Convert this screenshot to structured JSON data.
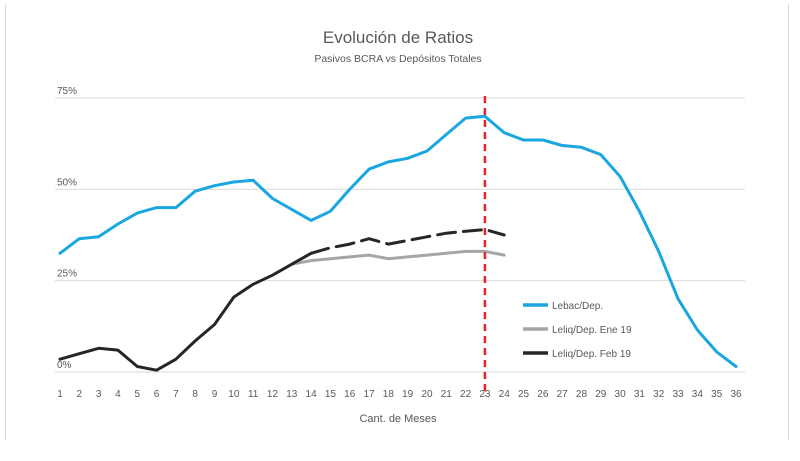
{
  "chart_data": {
    "type": "line",
    "title": "Evolución de Ratios",
    "subtitle": "Pasivos BCRA vs Depósitos Totales",
    "xlabel": "Cant. de Meses",
    "ylabel": "",
    "ylim": [
      0,
      75
    ],
    "yticks": [
      0,
      25,
      50,
      75
    ],
    "ytick_labels": [
      "0%",
      "25%",
      "50%",
      "75%"
    ],
    "categories": [
      "1",
      "2",
      "3",
      "4",
      "5",
      "6",
      "7",
      "8",
      "9",
      "10",
      "11",
      "12",
      "13",
      "14",
      "15",
      "16",
      "17",
      "18",
      "19",
      "20",
      "21",
      "22",
      "23",
      "24",
      "25",
      "26",
      "27",
      "28",
      "29",
      "30",
      "31",
      "32",
      "33",
      "34",
      "35",
      "36"
    ],
    "vertical_marker": {
      "x": 23,
      "color": "#e8242a",
      "style": "dashed"
    },
    "series": [
      {
        "name": "Lebac/Dep.",
        "color": "#1aa7e0",
        "style": "solid",
        "values": [
          32.5,
          36.5,
          37,
          40.5,
          43.5,
          45,
          45,
          49.5,
          51,
          52,
          52.5,
          47.5,
          44.5,
          41.5,
          44,
          50,
          55.5,
          57.5,
          58.5,
          60.5,
          65,
          69.5,
          70,
          65.5,
          63.5,
          63.5,
          62,
          61.5,
          59.5,
          53.5,
          44,
          33,
          20,
          11.5,
          5.5,
          1.5
        ]
      },
      {
        "name": "Leliq/Dep. Ene 19",
        "color": "#a6a6a6",
        "style": "solid",
        "values": [
          null,
          null,
          null,
          null,
          null,
          null,
          null,
          null,
          null,
          null,
          null,
          null,
          29.5,
          30.5,
          31,
          31.5,
          32,
          31,
          31.5,
          32,
          32.5,
          33,
          33,
          32,
          null,
          null,
          null,
          null,
          null,
          null,
          null,
          null,
          null,
          null,
          null,
          null
        ]
      },
      {
        "name": "Leliq/Dep. Feb 19",
        "color": "#262626",
        "style": "solid-then-dashed",
        "dash_from_index": 13,
        "values": [
          3.5,
          5,
          6.5,
          6,
          1.5,
          0.5,
          3.5,
          8.5,
          13,
          20.5,
          24,
          26.5,
          29.5,
          32.5,
          34,
          35,
          36.5,
          35,
          36,
          37,
          38,
          38.5,
          39,
          37.5,
          null,
          null,
          null,
          null,
          null,
          null,
          null,
          null,
          null,
          null,
          null,
          null
        ]
      }
    ]
  }
}
